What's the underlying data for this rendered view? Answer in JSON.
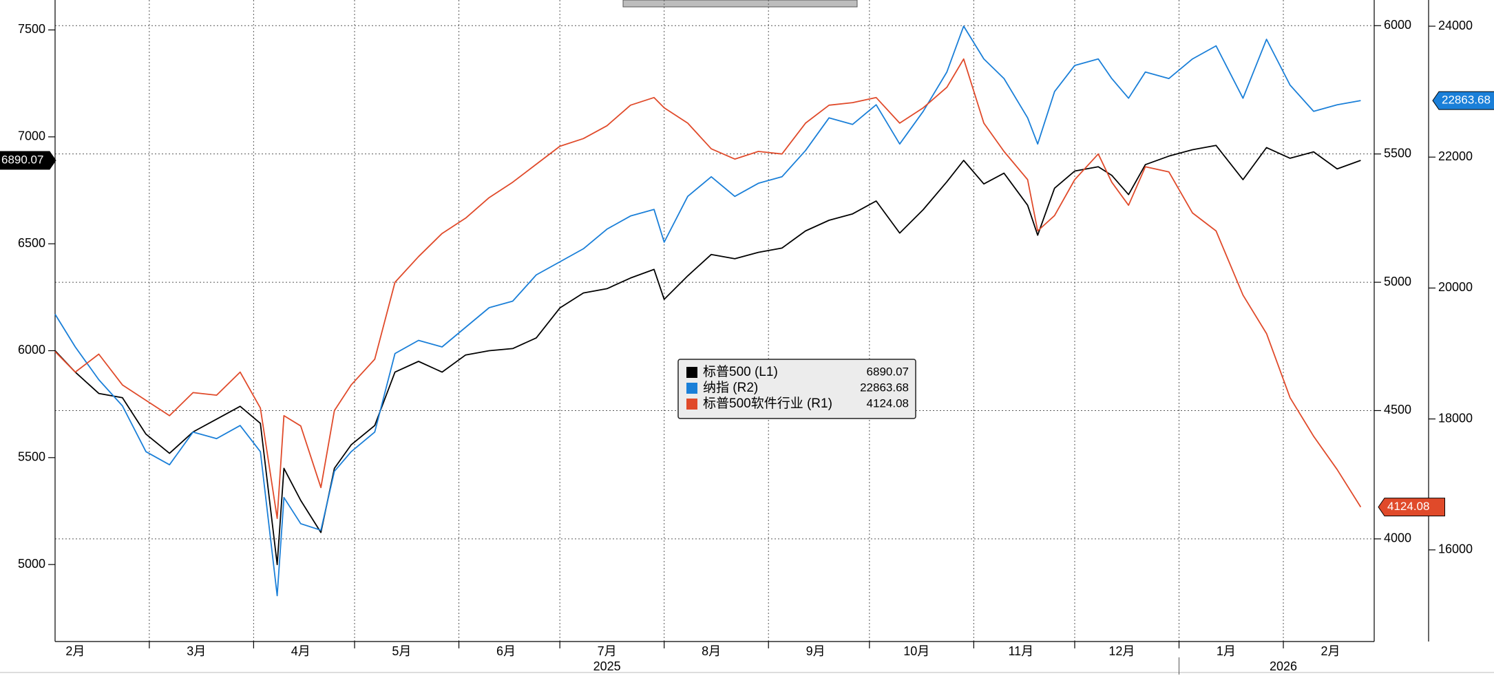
{
  "chart_data": {
    "type": "line",
    "title": "",
    "y_axes": {
      "L1": {
        "range": [
          4640,
          7640
        ],
        "ticks": [
          5000,
          5500,
          6000,
          6500,
          7000,
          7500
        ]
      },
      "R1": {
        "range": [
          3600,
          6100
        ],
        "ticks": [
          4000,
          4500,
          5000,
          5500,
          6000
        ]
      },
      "R2": {
        "range": [
          14600,
          24400
        ],
        "ticks": [
          16000,
          18000,
          20000,
          22000,
          24000
        ]
      }
    },
    "x_axis": {
      "range": [
        "2025-02-01",
        "2026-02-28"
      ],
      "month_labels": [
        {
          "date": "2025-02-07",
          "label": "2月"
        },
        {
          "date": "2025-03-15",
          "label": "3月"
        },
        {
          "date": "2025-04-15",
          "label": "4月"
        },
        {
          "date": "2025-05-15",
          "label": "5月"
        },
        {
          "date": "2025-06-15",
          "label": "6月"
        },
        {
          "date": "2025-07-15",
          "label": "7月"
        },
        {
          "date": "2025-08-15",
          "label": "8月"
        },
        {
          "date": "2025-09-15",
          "label": "9月"
        },
        {
          "date": "2025-10-15",
          "label": "10月"
        },
        {
          "date": "2025-11-15",
          "label": "11月"
        },
        {
          "date": "2025-12-15",
          "label": "12月"
        },
        {
          "date": "2026-01-15",
          "label": "1月"
        },
        {
          "date": "2026-02-15",
          "label": "2月"
        }
      ],
      "year_labels": [
        {
          "date": "2025-07-15",
          "label": "2025"
        },
        {
          "date": "2026-02-01",
          "label": "2026"
        }
      ],
      "year_divider": "2026-01-01"
    },
    "grid": true,
    "legend_position": "center",
    "series": [
      {
        "name": "标普500 (L1)",
        "axis": "L1",
        "color": "#000000",
        "last": "6890.07",
        "points": [
          [
            "2025-02-01",
            6000
          ],
          [
            "2025-02-07",
            5900
          ],
          [
            "2025-02-14",
            5800
          ],
          [
            "2025-02-21",
            5780
          ],
          [
            "2025-02-28",
            5610
          ],
          [
            "2025-03-07",
            5520
          ],
          [
            "2025-03-14",
            5620
          ],
          [
            "2025-03-21",
            5680
          ],
          [
            "2025-03-28",
            5740
          ],
          [
            "2025-04-03",
            5660
          ],
          [
            "2025-04-08",
            5000
          ],
          [
            "2025-04-10",
            5450
          ],
          [
            "2025-04-15",
            5300
          ],
          [
            "2025-04-21",
            5150
          ],
          [
            "2025-04-25",
            5450
          ],
          [
            "2025-04-30",
            5560
          ],
          [
            "2025-05-07",
            5650
          ],
          [
            "2025-05-13",
            5900
          ],
          [
            "2025-05-20",
            5950
          ],
          [
            "2025-05-27",
            5900
          ],
          [
            "2025-06-03",
            5980
          ],
          [
            "2025-06-10",
            6000
          ],
          [
            "2025-06-17",
            6010
          ],
          [
            "2025-06-24",
            6060
          ],
          [
            "2025-07-01",
            6200
          ],
          [
            "2025-07-08",
            6270
          ],
          [
            "2025-07-15",
            6290
          ],
          [
            "2025-07-22",
            6340
          ],
          [
            "2025-07-29",
            6380
          ],
          [
            "2025-08-01",
            6240
          ],
          [
            "2025-08-08",
            6350
          ],
          [
            "2025-08-15",
            6450
          ],
          [
            "2025-08-22",
            6430
          ],
          [
            "2025-08-29",
            6460
          ],
          [
            "2025-09-05",
            6480
          ],
          [
            "2025-09-12",
            6560
          ],
          [
            "2025-09-19",
            6610
          ],
          [
            "2025-09-26",
            6640
          ],
          [
            "2025-10-03",
            6700
          ],
          [
            "2025-10-10",
            6550
          ],
          [
            "2025-10-17",
            6660
          ],
          [
            "2025-10-24",
            6790
          ],
          [
            "2025-10-29",
            6890
          ],
          [
            "2025-11-04",
            6780
          ],
          [
            "2025-11-10",
            6830
          ],
          [
            "2025-11-17",
            6680
          ],
          [
            "2025-11-20",
            6540
          ],
          [
            "2025-11-25",
            6760
          ],
          [
            "2025-12-01",
            6840
          ],
          [
            "2025-12-08",
            6860
          ],
          [
            "2025-12-12",
            6820
          ],
          [
            "2025-12-17",
            6730
          ],
          [
            "2025-12-22",
            6870
          ],
          [
            "2025-12-29",
            6910
          ],
          [
            "2026-01-05",
            6940
          ],
          [
            "2026-01-12",
            6960
          ],
          [
            "2026-01-20",
            6800
          ],
          [
            "2026-01-27",
            6950
          ],
          [
            "2026-02-03",
            6900
          ],
          [
            "2026-02-10",
            6930
          ],
          [
            "2026-02-17",
            6850
          ],
          [
            "2026-02-24",
            6890.07
          ]
        ]
      },
      {
        "name": "纳指 (R2)",
        "axis": "R2",
        "color": "#1a7fd8",
        "last": "22863.68",
        "points": [
          [
            "2025-02-01",
            19600
          ],
          [
            "2025-02-07",
            19100
          ],
          [
            "2025-02-14",
            18600
          ],
          [
            "2025-02-21",
            18200
          ],
          [
            "2025-02-28",
            17500
          ],
          [
            "2025-03-07",
            17300
          ],
          [
            "2025-03-14",
            17800
          ],
          [
            "2025-03-21",
            17700
          ],
          [
            "2025-03-28",
            17900
          ],
          [
            "2025-04-03",
            17500
          ],
          [
            "2025-04-08",
            15300
          ],
          [
            "2025-04-10",
            16800
          ],
          [
            "2025-04-15",
            16400
          ],
          [
            "2025-04-21",
            16300
          ],
          [
            "2025-04-25",
            17200
          ],
          [
            "2025-04-30",
            17500
          ],
          [
            "2025-05-07",
            17800
          ],
          [
            "2025-05-13",
            19000
          ],
          [
            "2025-05-20",
            19200
          ],
          [
            "2025-05-27",
            19100
          ],
          [
            "2025-06-03",
            19400
          ],
          [
            "2025-06-10",
            19700
          ],
          [
            "2025-06-17",
            19800
          ],
          [
            "2025-06-24",
            20200
          ],
          [
            "2025-07-01",
            20400
          ],
          [
            "2025-07-08",
            20600
          ],
          [
            "2025-07-15",
            20900
          ],
          [
            "2025-07-22",
            21100
          ],
          [
            "2025-07-29",
            21200
          ],
          [
            "2025-08-01",
            20700
          ],
          [
            "2025-08-08",
            21400
          ],
          [
            "2025-08-15",
            21700
          ],
          [
            "2025-08-22",
            21400
          ],
          [
            "2025-08-29",
            21600
          ],
          [
            "2025-09-05",
            21700
          ],
          [
            "2025-09-12",
            22100
          ],
          [
            "2025-09-19",
            22600
          ],
          [
            "2025-09-26",
            22500
          ],
          [
            "2025-10-03",
            22800
          ],
          [
            "2025-10-10",
            22200
          ],
          [
            "2025-10-17",
            22700
          ],
          [
            "2025-10-24",
            23300
          ],
          [
            "2025-10-29",
            24000
          ],
          [
            "2025-11-04",
            23500
          ],
          [
            "2025-11-10",
            23200
          ],
          [
            "2025-11-17",
            22600
          ],
          [
            "2025-11-20",
            22200
          ],
          [
            "2025-11-25",
            23000
          ],
          [
            "2025-12-01",
            23400
          ],
          [
            "2025-12-08",
            23500
          ],
          [
            "2025-12-12",
            23200
          ],
          [
            "2025-12-17",
            22900
          ],
          [
            "2025-12-22",
            23300
          ],
          [
            "2025-12-29",
            23200
          ],
          [
            "2026-01-05",
            23500
          ],
          [
            "2026-01-12",
            23700
          ],
          [
            "2026-01-20",
            22900
          ],
          [
            "2026-01-27",
            23800
          ],
          [
            "2026-02-03",
            23100
          ],
          [
            "2026-02-10",
            22700
          ],
          [
            "2026-02-17",
            22800
          ],
          [
            "2026-02-24",
            22863.68
          ]
        ]
      },
      {
        "name": "标普500软件行业 (R1)",
        "axis": "R1",
        "color": "#e04a2a",
        "last": "4124.08",
        "points": [
          [
            "2025-02-01",
            4730
          ],
          [
            "2025-02-07",
            4650
          ],
          [
            "2025-02-14",
            4720
          ],
          [
            "2025-02-21",
            4600
          ],
          [
            "2025-02-28",
            4540
          ],
          [
            "2025-03-07",
            4480
          ],
          [
            "2025-03-14",
            4570
          ],
          [
            "2025-03-21",
            4560
          ],
          [
            "2025-03-28",
            4650
          ],
          [
            "2025-04-03",
            4510
          ],
          [
            "2025-04-08",
            4080
          ],
          [
            "2025-04-10",
            4480
          ],
          [
            "2025-04-15",
            4440
          ],
          [
            "2025-04-21",
            4200
          ],
          [
            "2025-04-25",
            4500
          ],
          [
            "2025-04-30",
            4600
          ],
          [
            "2025-05-07",
            4700
          ],
          [
            "2025-05-13",
            5000
          ],
          [
            "2025-05-20",
            5100
          ],
          [
            "2025-05-27",
            5190
          ],
          [
            "2025-06-03",
            5250
          ],
          [
            "2025-06-10",
            5330
          ],
          [
            "2025-06-17",
            5390
          ],
          [
            "2025-06-24",
            5460
          ],
          [
            "2025-07-01",
            5530
          ],
          [
            "2025-07-08",
            5560
          ],
          [
            "2025-07-15",
            5610
          ],
          [
            "2025-07-22",
            5690
          ],
          [
            "2025-07-29",
            5720
          ],
          [
            "2025-08-01",
            5680
          ],
          [
            "2025-08-08",
            5620
          ],
          [
            "2025-08-15",
            5520
          ],
          [
            "2025-08-22",
            5480
          ],
          [
            "2025-08-29",
            5510
          ],
          [
            "2025-09-05",
            5500
          ],
          [
            "2025-09-12",
            5620
          ],
          [
            "2025-09-19",
            5690
          ],
          [
            "2025-09-26",
            5700
          ],
          [
            "2025-10-03",
            5720
          ],
          [
            "2025-10-10",
            5620
          ],
          [
            "2025-10-17",
            5680
          ],
          [
            "2025-10-24",
            5760
          ],
          [
            "2025-10-29",
            5870
          ],
          [
            "2025-11-04",
            5620
          ],
          [
            "2025-11-10",
            5510
          ],
          [
            "2025-11-17",
            5400
          ],
          [
            "2025-11-20",
            5200
          ],
          [
            "2025-11-25",
            5260
          ],
          [
            "2025-12-01",
            5400
          ],
          [
            "2025-12-08",
            5500
          ],
          [
            "2025-12-12",
            5390
          ],
          [
            "2025-12-17",
            5300
          ],
          [
            "2025-12-22",
            5450
          ],
          [
            "2025-12-29",
            5430
          ],
          [
            "2026-01-05",
            5270
          ],
          [
            "2026-01-12",
            5200
          ],
          [
            "2026-01-20",
            4950
          ],
          [
            "2026-01-27",
            4800
          ],
          [
            "2026-02-03",
            4550
          ],
          [
            "2026-02-10",
            4400
          ],
          [
            "2026-02-17",
            4270
          ],
          [
            "2026-02-24",
            4124.08
          ]
        ]
      }
    ],
    "legend_rows": [
      {
        "swatch": "#000000",
        "name": "标普500 (L1)",
        "value": "6890.07"
      },
      {
        "swatch": "#1a7fd8",
        "name": "纳指 (R2)",
        "value": "22863.68"
      },
      {
        "swatch": "#e04a2a",
        "name": "标普500软件行业 (R1)",
        "value": "4124.08"
      }
    ]
  }
}
